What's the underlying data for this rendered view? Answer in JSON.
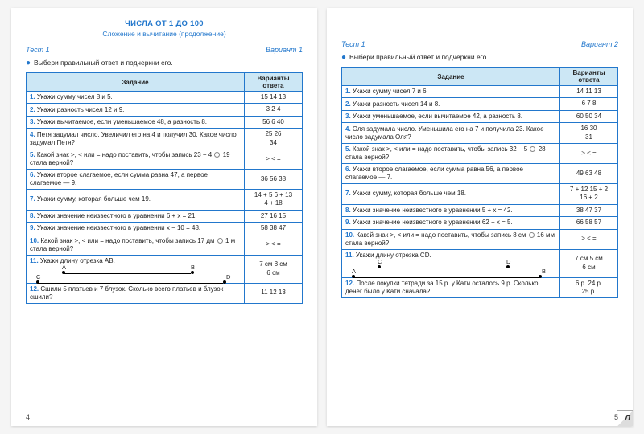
{
  "header": {
    "title_main": "ЧИСЛА ОТ 1 ДО 100",
    "title_sub": "Сложение и вычитание (продолжение)"
  },
  "instruction": "Выбери правильный ответ и подчеркни его.",
  "th_task": "Задание",
  "th_ans": "Варианты ответа",
  "left": {
    "test": "Тест 1",
    "variant": "Вариант 1",
    "pagenum": "4",
    "rows": [
      {
        "n": "1.",
        "t": "Укажи сумму чисел 8 и 5.",
        "a": "15   14   13"
      },
      {
        "n": "2.",
        "t": "Укажи разность чисел 12 и 9.",
        "a": "3    2    4"
      },
      {
        "n": "3.",
        "t": "Укажи вычитаемое, если уменьшаемое 48, а разность 8.",
        "a": "56   6   40"
      },
      {
        "n": "4.",
        "t": "Петя задумал число. Увеличил его на 4 и получил 30. Какое число задумал Петя?",
        "a": "25       26\n     34"
      },
      {
        "n": "5.",
        "t": "Какой знак >, < или = надо поставить, чтобы запись 23 − 4 ○ 19 стала верной?",
        "a": ">   <   ="
      },
      {
        "n": "6.",
        "t": "Укажи второе слагаемое, если сумма равна 47, а первое слагаемое — 9.",
        "a": "36   56   38"
      },
      {
        "n": "7.",
        "t": "Укажи сумму, которая больше чем 19.",
        "a": "14 + 5   6 + 13\n4 + 18"
      },
      {
        "n": "8.",
        "t": "Укажи значение неизвестного в уравнении 6 + x = 21.",
        "a": "27   16   15"
      },
      {
        "n": "9.",
        "t": "Укажи значение неизвестного в уравнении x − 10 = 48.",
        "a": "58   38   47"
      },
      {
        "n": "10.",
        "t": "Какой знак >, < или = надо поставить, чтобы запись 17 дм ○ 1 м стала верной?",
        "a": ">   <   ="
      },
      {
        "n": "11.",
        "t": "Укажи длину отрезка AB.",
        "a": "7 см   8 см\n6 см",
        "seg": "AB"
      },
      {
        "n": "12.",
        "t": "Сшили 5 платьев и 7 блузок. Сколько всего платьев и блузок сшили?",
        "a": "11   12   13"
      }
    ]
  },
  "right": {
    "test": "Тест 1",
    "variant": "Вариант 2",
    "pagenum": "5",
    "rows": [
      {
        "n": "1.",
        "t": "Укажи сумму чисел 7 и 6.",
        "a": "14   11   13"
      },
      {
        "n": "2.",
        "t": "Укажи разность чисел 14 и 8.",
        "a": "6    7    8"
      },
      {
        "n": "3.",
        "t": "Укажи уменьшаемое, если вычитаемое 42, а разность 8.",
        "a": "60   50   34"
      },
      {
        "n": "4.",
        "t": "Оля задумала число. Уменьшила его на 7 и получила 23. Какое число задумала Оля?",
        "a": "16       30\n     31"
      },
      {
        "n": "5.",
        "t": "Какой знак >, < или = надо поставить, чтобы запись 32 − 5 ○ 28 стала верной?",
        "a": ">   <   ="
      },
      {
        "n": "6.",
        "t": "Укажи второе слагаемое, если сумма равна 56, а первое слагаемое — 7.",
        "a": "49   63   48"
      },
      {
        "n": "7.",
        "t": "Укажи сумму, которая больше чем 18.",
        "a": "7 + 12   15 + 2\n16 + 2"
      },
      {
        "n": "8.",
        "t": "Укажи значение неизвестного в уравнении 5 + x = 42.",
        "a": "38   47   37"
      },
      {
        "n": "9.",
        "t": "Укажи значение неизвестного в уравнении 62 − x = 5.",
        "a": "66   58   57"
      },
      {
        "n": "10.",
        "t": "Какой знак >, < или = надо поставить, чтобы запись 8 см ○ 16 мм стала верной?",
        "a": ">   <   ="
      },
      {
        "n": "11.",
        "t": "Укажи длину отрезка CD.",
        "a": "7 см   5 см\n6 см",
        "seg": "CD"
      },
      {
        "n": "12.",
        "t": "После покупки тетради за 15 р. у Кати осталось 9 р. Сколько денег было у Кати сначала?",
        "a": "6 р.   24 р.\n25 р."
      }
    ]
  }
}
